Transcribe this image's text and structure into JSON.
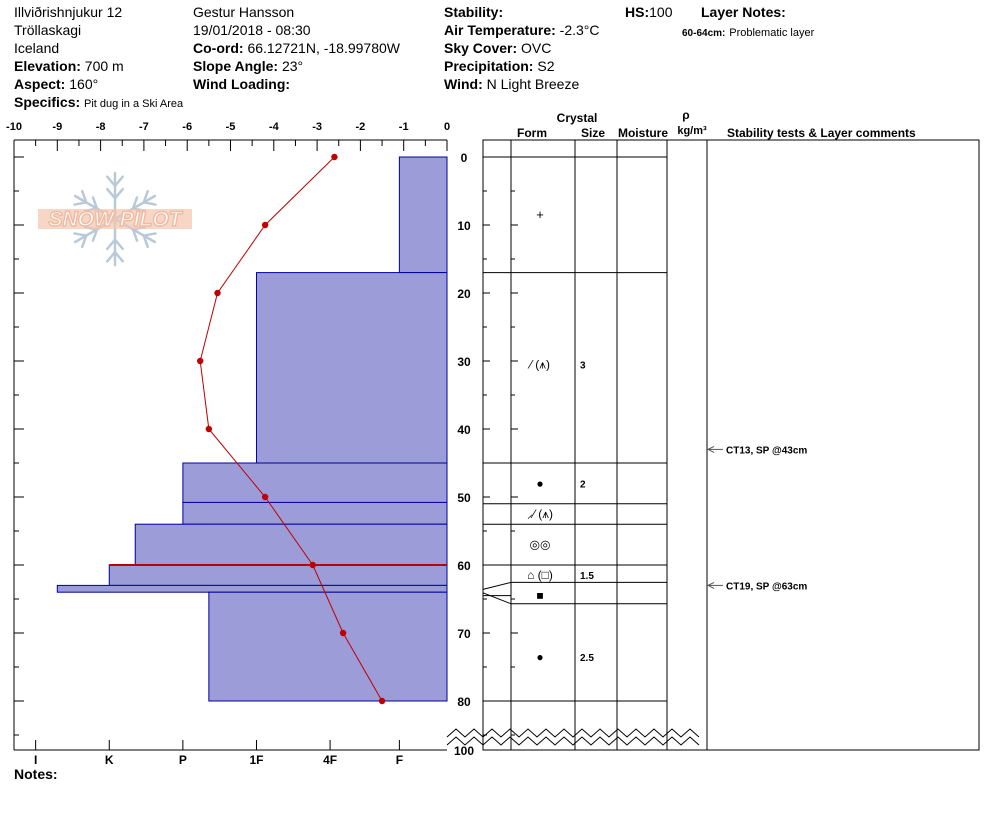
{
  "header": {
    "location": "Illviðrishnjukur 12",
    "region": "Tröllaskagi",
    "country": "Iceland",
    "elevation_label": "Elevation:",
    "elevation_value": "700 m",
    "aspect_label": "Aspect:",
    "aspect_value": "160°",
    "specifics_label": "Specifics:",
    "specifics_value": "Pit dug in a Ski Area",
    "observer": "Gestur Hansson",
    "datetime": "19/01/2018 - 08:30",
    "coord_label": "Co-ord:",
    "coord_value": "66.12721N, -18.99780W",
    "slope_label": "Slope Angle:",
    "slope_value": "23°",
    "wind_loading_label": "Wind Loading:",
    "wind_loading_value": "",
    "stability_label": "Stability:",
    "stability_value": "",
    "air_temp_label": "Air Temperature:",
    "air_temp_value": "-2.3°C",
    "sky_label": "Sky Cover:",
    "sky_value": "OVC",
    "precip_label": "Precipitation:",
    "precip_value": "S2",
    "wind_label": "Wind:",
    "wind_value": "N Light Breeze",
    "hs_label": "HS:",
    "hs_value": "100",
    "layer_notes_label": "Layer Notes:",
    "layer_note_range": "60-64cm:",
    "layer_note_text": "Problematic layer"
  },
  "logo_text": "SNOW PILOT",
  "notes_label": "Notes:",
  "table_headers": {
    "crystal": "Crystal",
    "form": "Form",
    "size": "Size",
    "moisture": "Moisture",
    "rho": "ρ",
    "density_unit": "kg/m³",
    "stability": "Stability tests & Layer comments"
  },
  "colors": {
    "hardness_fill": "#9c9cd8",
    "hardness_stroke": "#0000a0",
    "temp_line": "#c00000"
  },
  "chart_data": {
    "type": "snow_profile",
    "temperature_axis": {
      "min": -10,
      "max": 0,
      "ticks": [
        -10,
        -9,
        -8,
        -7,
        -6,
        -5,
        -4,
        -3,
        -2,
        -1,
        0
      ]
    },
    "depth_axis": {
      "min": 0,
      "max": 100,
      "ticks": [
        0,
        10,
        20,
        30,
        40,
        50,
        60,
        70,
        80,
        100
      ]
    },
    "hardness_axis": {
      "labels": [
        "I",
        "K",
        "P",
        "1F",
        "4F",
        "F"
      ],
      "positions": [
        -9.5,
        -7.8,
        -6.1,
        -4.4,
        -2.7,
        -1.1
      ]
    },
    "hardness_layers": [
      {
        "top": 0,
        "bottom": 17,
        "value": -1.1
      },
      {
        "top": 17,
        "bottom": 45,
        "value": -4.4
      },
      {
        "top": 45,
        "bottom": 50.8,
        "value": -6.1
      },
      {
        "top": 50.8,
        "bottom": 54,
        "value": -6.1
      },
      {
        "top": 54,
        "bottom": 60,
        "value": -7.2
      },
      {
        "top": 60,
        "bottom": 63,
        "value": -7.8
      },
      {
        "top": 63,
        "bottom": 64,
        "value": -9.0
      },
      {
        "top": 64,
        "bottom": 80,
        "value": -5.5
      }
    ],
    "problem_layer_depth": 60,
    "temperature_profile": [
      {
        "depth": 0,
        "temp": -2.6
      },
      {
        "depth": 10,
        "temp": -4.2
      },
      {
        "depth": 20,
        "temp": -5.3
      },
      {
        "depth": 30,
        "temp": -5.7
      },
      {
        "depth": 40,
        "temp": -5.5
      },
      {
        "depth": 50,
        "temp": -4.2
      },
      {
        "depth": 60,
        "temp": -3.1
      },
      {
        "depth": 70,
        "temp": -2.4
      },
      {
        "depth": 80,
        "temp": -1.5
      }
    ],
    "layer_boundaries": [
      0,
      17,
      45,
      51,
      54,
      60,
      63,
      66,
      80
    ],
    "crystals": [
      {
        "depth": 8.5,
        "form": "+",
        "size": ""
      },
      {
        "depth": 30.5,
        "form": "⁄ (⩚)",
        "size": "3"
      },
      {
        "depth": 48,
        "form": "●",
        "size": "2"
      },
      {
        "depth": 52.5,
        "form": "⸝⁄ (⩚)",
        "size": ""
      },
      {
        "depth": 57,
        "form": "◎◎",
        "size": ""
      },
      {
        "depth": 61.5,
        "form": "⌂ (□)",
        "size": "1.5"
      },
      {
        "depth": 64.5,
        "form": "■",
        "size": ""
      },
      {
        "depth": 73.5,
        "form": "●",
        "size": "2.5"
      }
    ],
    "stability_tests": [
      {
        "depth": 43,
        "text": "CT13, SP @43cm"
      },
      {
        "depth": 63,
        "text": "CT19, SP @63cm"
      }
    ]
  }
}
